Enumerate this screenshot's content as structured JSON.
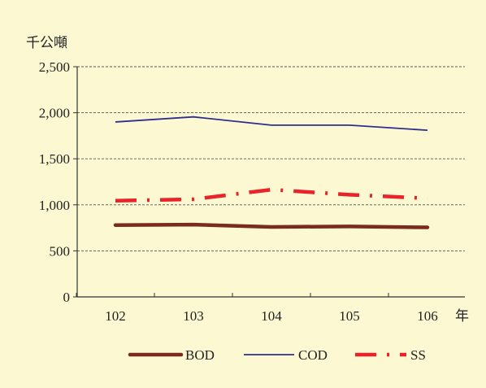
{
  "chart_data": {
    "type": "line",
    "ylabel": "千公噸",
    "xlabel": "年",
    "categories": [
      "102",
      "103",
      "104",
      "105",
      "106"
    ],
    "ylim": [
      0,
      2500
    ],
    "yticks": [
      0,
      500,
      1000,
      1500,
      2000,
      2500
    ],
    "ytick_labels": [
      "0",
      "500",
      "1,000",
      "1,500",
      "2,000",
      "2,500"
    ],
    "grid": "horizontal dashed",
    "legend_position": "bottom",
    "series": [
      {
        "name": "BOD",
        "values": [
          780,
          785,
          760,
          765,
          755
        ],
        "color": "#7a2a1e",
        "style": "solid-thick"
      },
      {
        "name": "COD",
        "values": [
          1900,
          1955,
          1865,
          1865,
          1810
        ],
        "color": "#2e2f8c",
        "style": "solid-thin"
      },
      {
        "name": "SS",
        "values": [
          1045,
          1060,
          1165,
          1110,
          1070
        ],
        "color": "#e8232a",
        "style": "dash-dot-thick"
      }
    ]
  }
}
